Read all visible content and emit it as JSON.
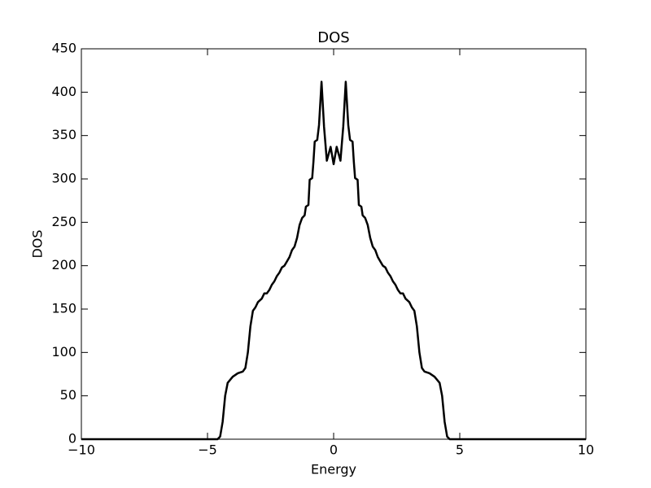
{
  "chart_data": {
    "type": "line",
    "title": "DOS",
    "x_label": "Energy",
    "y_label": "DOS",
    "color": "#000000",
    "x": [
      -10,
      -4.6,
      -4.5,
      -4.4,
      -4.3,
      -4.2,
      -4.0,
      -3.8,
      -3.6,
      -3.5,
      -3.4,
      -3.3,
      -3.2,
      -3.1,
      -3.0,
      -2.85,
      -2.75,
      -2.65,
      -2.55,
      -2.45,
      -2.35,
      -2.25,
      -2.15,
      -2.05,
      -1.95,
      -1.85,
      -1.75,
      -1.65,
      -1.55,
      -1.45,
      -1.35,
      -1.25,
      -1.15,
      -1.1,
      -1.0,
      -0.95,
      -0.85,
      -0.8,
      -0.75,
      -0.65,
      -0.58,
      -0.48,
      -0.38,
      -0.27,
      -0.12,
      0,
      0.12,
      0.27,
      0.38,
      0.48,
      0.58,
      0.65,
      0.75,
      0.8,
      0.85,
      0.95,
      1.0,
      1.1,
      1.15,
      1.25,
      1.35,
      1.45,
      1.55,
      1.65,
      1.75,
      1.85,
      1.95,
      2.05,
      2.15,
      2.25,
      2.35,
      2.45,
      2.55,
      2.65,
      2.75,
      2.85,
      3.0,
      3.1,
      3.2,
      3.3,
      3.4,
      3.5,
      3.6,
      3.8,
      4.0,
      4.2,
      4.3,
      4.4,
      4.5,
      4.6,
      10
    ],
    "values": [
      0,
      0,
      3,
      20,
      50,
      65,
      72,
      76,
      78,
      82,
      100,
      130,
      148,
      152,
      158,
      162,
      168,
      168,
      172,
      178,
      182,
      188,
      192,
      198,
      200,
      205,
      210,
      218,
      222,
      232,
      247,
      255,
      258,
      268,
      270,
      299,
      301,
      320,
      343,
      345,
      362,
      412,
      360,
      321,
      337,
      317,
      337,
      321,
      360,
      412,
      362,
      345,
      343,
      320,
      301,
      299,
      270,
      268,
      258,
      255,
      247,
      232,
      222,
      218,
      210,
      205,
      200,
      198,
      192,
      188,
      182,
      178,
      172,
      168,
      168,
      162,
      158,
      152,
      148,
      130,
      100,
      82,
      78,
      76,
      72,
      65,
      50,
      20,
      3,
      0,
      0
    ],
    "xlim": [
      -10,
      10
    ],
    "ylim": [
      0,
      450
    ],
    "xticks": [
      {
        "value": -10,
        "label": "−10"
      },
      {
        "value": -5,
        "label": "−5"
      },
      0,
      5,
      10
    ],
    "yticks": [
      0,
      50,
      100,
      150,
      200,
      250,
      300,
      350,
      400,
      450
    ]
  }
}
